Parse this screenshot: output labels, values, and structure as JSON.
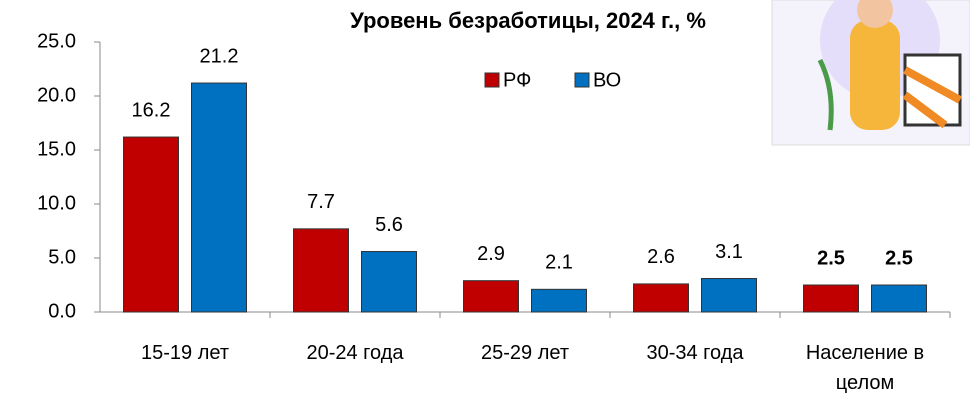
{
  "chart_data": {
    "type": "bar",
    "title": "Уровень безработицы, 2024 г., %",
    "categories": [
      "15-19 лет",
      "20-24 года",
      "25-29 лет",
      "30-34 года",
      "Население в целом"
    ],
    "series": [
      {
        "name": "РФ",
        "color": "#c00000",
        "values": [
          16.2,
          7.7,
          2.9,
          2.6,
          2.5
        ]
      },
      {
        "name": "ВО",
        "color": "#0070c0",
        "values": [
          21.2,
          5.6,
          2.1,
          3.1,
          2.5
        ]
      }
    ],
    "ylim": [
      0,
      25
    ],
    "yticks": [
      {
        "value": 0,
        "label": "0.0"
      },
      {
        "value": 5,
        "label": "5.0"
      },
      {
        "value": 10,
        "label": "10.0"
      },
      {
        "value": 15,
        "label": "15.0"
      },
      {
        "value": 20,
        "label": "20.0"
      },
      {
        "value": 25,
        "label": "25.0"
      }
    ],
    "legend": "top"
  }
}
